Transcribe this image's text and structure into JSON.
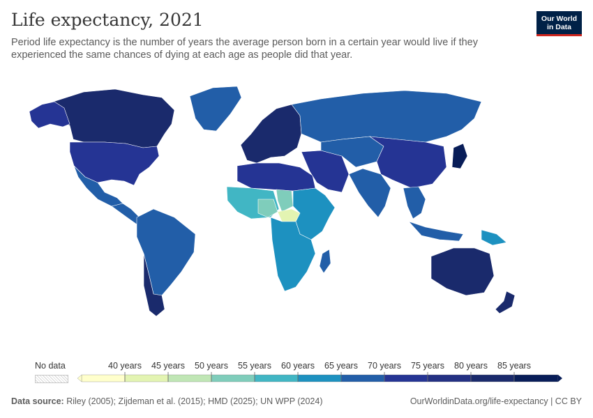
{
  "header": {
    "title": "Life expectancy, 2021",
    "subtitle": "Period life expectancy is the number of years the average person born in a certain year would live if they experienced the same chances of dying at each age as people did that year."
  },
  "logo": {
    "line1": "Our World",
    "line2": "in Data"
  },
  "legend": {
    "no_data_label": "No data",
    "ticks": [
      "40 years",
      "45 years",
      "50 years",
      "55 years",
      "60 years",
      "65 years",
      "70 years",
      "75 years",
      "80 years",
      "85 years"
    ],
    "bin_colors": [
      "#ffffcc",
      "#e3f4b2",
      "#c0e6b5",
      "#7fcdbb",
      "#41b6c4",
      "#1d91c0",
      "#225ea8",
      "#253494",
      "#233083",
      "#1a2a6c",
      "#081d58"
    ]
  },
  "footer": {
    "source_label": "Data source:",
    "source_text": "Riley (2005); Zijdeman et al. (2015); HMD (2025); UN WPP (2024)",
    "url_text": "OurWorldinData.org/life-expectancy | CC BY"
  },
  "regions": [
    {
      "name": "Canada",
      "color": "#1a2a6c"
    },
    {
      "name": "Alaska",
      "color": "#253494"
    },
    {
      "name": "United States",
      "color": "#253494"
    },
    {
      "name": "Greenland",
      "color": "#225ea8"
    },
    {
      "name": "Mexico",
      "color": "#225ea8"
    },
    {
      "name": "Central America",
      "color": "#225ea8"
    },
    {
      "name": "South America",
      "color": "#225ea8"
    },
    {
      "name": "Chile",
      "color": "#1a2a6c"
    },
    {
      "name": "Europe",
      "color": "#1a2a6c"
    },
    {
      "name": "Russia",
      "color": "#225ea8"
    },
    {
      "name": "North Africa",
      "color": "#253494"
    },
    {
      "name": "West Africa",
      "color": "#41b6c4"
    },
    {
      "name": "Nigeria",
      "color": "#7fcdbb"
    },
    {
      "name": "Chad",
      "color": "#7fcdbb"
    },
    {
      "name": "Central African Republic",
      "color": "#e3f4b2"
    },
    {
      "name": "East Africa",
      "color": "#1d91c0"
    },
    {
      "name": "Central and Southern Africa",
      "color": "#1d91c0"
    },
    {
      "name": "Madagascar",
      "color": "#225ea8"
    },
    {
      "name": "Middle East",
      "color": "#253494"
    },
    {
      "name": "Central Asia",
      "color": "#225ea8"
    },
    {
      "name": "South Asia",
      "color": "#225ea8"
    },
    {
      "name": "China",
      "color": "#253494"
    },
    {
      "name": "Japan",
      "color": "#081d58"
    },
    {
      "name": "Southeast Asia",
      "color": "#225ea8"
    },
    {
      "name": "Indonesia",
      "color": "#225ea8"
    },
    {
      "name": "Papua New Guinea",
      "color": "#1d91c0"
    },
    {
      "name": "Australia",
      "color": "#1a2a6c"
    },
    {
      "name": "New Zealand",
      "color": "#1a2a6c"
    }
  ]
}
